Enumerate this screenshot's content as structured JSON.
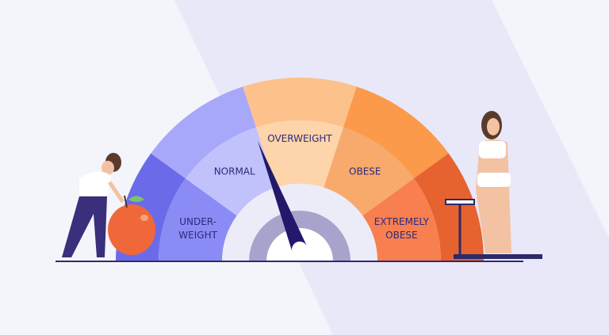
{
  "gauge": {
    "segments": [
      {
        "lines": [
          "UNDER-",
          "WEIGHT"
        ],
        "outer_color": "#6b6bea",
        "inner_color": "#8b8bf6"
      },
      {
        "lines": [
          "NORMAL"
        ],
        "outer_color": "#a8a8fa",
        "inner_color": "#c1c1fc"
      },
      {
        "lines": [
          "OVERWEIGHT"
        ],
        "outer_color": "#fdc18c",
        "inner_color": "#fed4aa"
      },
      {
        "lines": [
          "OBESE"
        ],
        "outer_color": "#fb9a4a",
        "inner_color": "#f7aa6c"
      },
      {
        "lines": [
          "EXTREMELY",
          "OBESE"
        ],
        "outer_color": "#e6632f",
        "inner_color": "#f87f50"
      }
    ],
    "needle_category": "OVERWEIGHT",
    "needle_color": "#23196b"
  }
}
